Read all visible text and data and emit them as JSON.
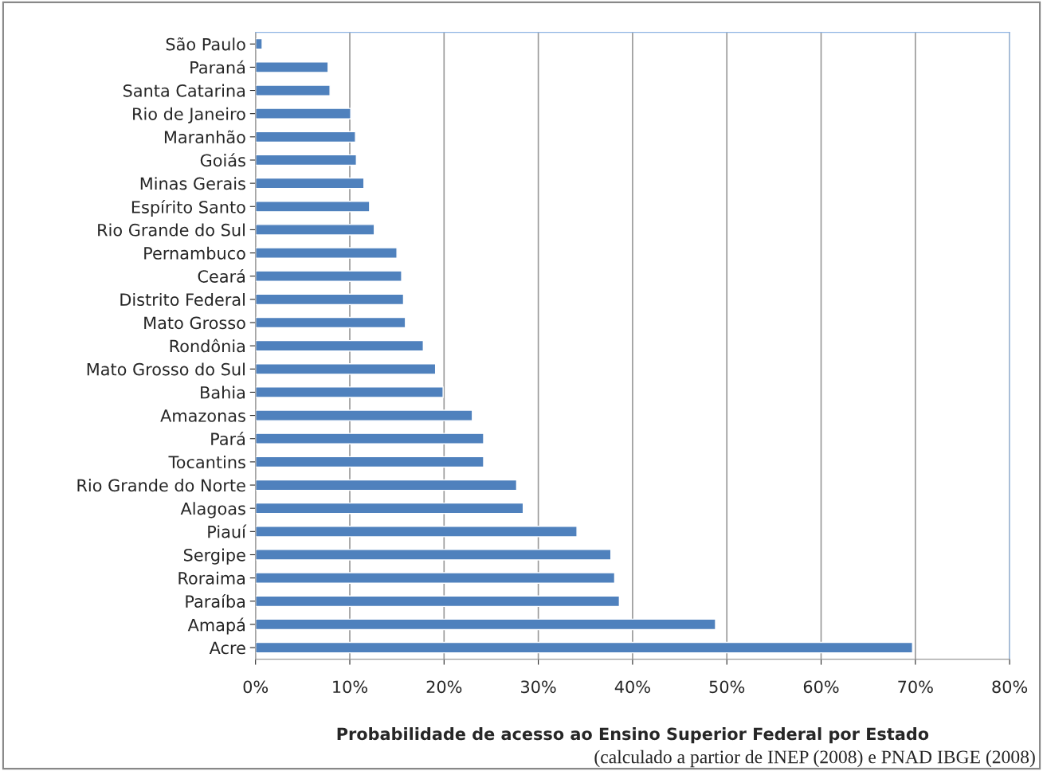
{
  "chart_data": {
    "type": "bar",
    "orientation": "horizontal",
    "xlabel": "Probabilidade de acesso ao Ensino Superior Federal por Estado",
    "annotations": [
      "(calculado a partior de INEP (2008) e PNAD IBGE (2008)"
    ],
    "categories": [
      "São Paulo",
      "Paraná",
      "Santa Catarina",
      "Rio de Janeiro",
      "Maranhão",
      "Goiás",
      "Minas Gerais",
      "Espírito Santo",
      "Rio Grande do Sul",
      "Pernambuco",
      "Ceará",
      "Distrito Federal",
      "Mato Grosso",
      "Rondônia",
      "Mato Grosso do Sul",
      "Bahia",
      "Amazonas",
      "Pará",
      "Tocantins",
      "Rio Grande do Norte",
      "Alagoas",
      "Piauí",
      "Sergipe",
      "Roraima",
      "Paraíba",
      "Amapá",
      "Acre"
    ],
    "values": [
      0.7,
      7.7,
      7.9,
      10.1,
      10.6,
      10.7,
      11.5,
      12.1,
      12.6,
      15.0,
      15.5,
      15.7,
      15.9,
      17.8,
      19.1,
      19.9,
      23.0,
      24.2,
      24.2,
      27.7,
      28.4,
      34.1,
      37.7,
      38.1,
      38.6,
      48.8,
      69.7
    ],
    "color": "#4f81bd",
    "xlim": [
      0,
      80
    ],
    "xticks": [
      {
        "value": 0,
        "label": "0%"
      },
      {
        "value": 10,
        "label": "10%"
      },
      {
        "value": 20,
        "label": "20%"
      },
      {
        "value": 30,
        "label": "30%"
      },
      {
        "value": 40,
        "label": "40%"
      },
      {
        "value": 50,
        "label": "50%"
      },
      {
        "value": 60,
        "label": "60%"
      },
      {
        "value": 70,
        "label": "70%"
      },
      {
        "value": 80,
        "label": "80%"
      }
    ],
    "grid": "x",
    "legend": false
  }
}
